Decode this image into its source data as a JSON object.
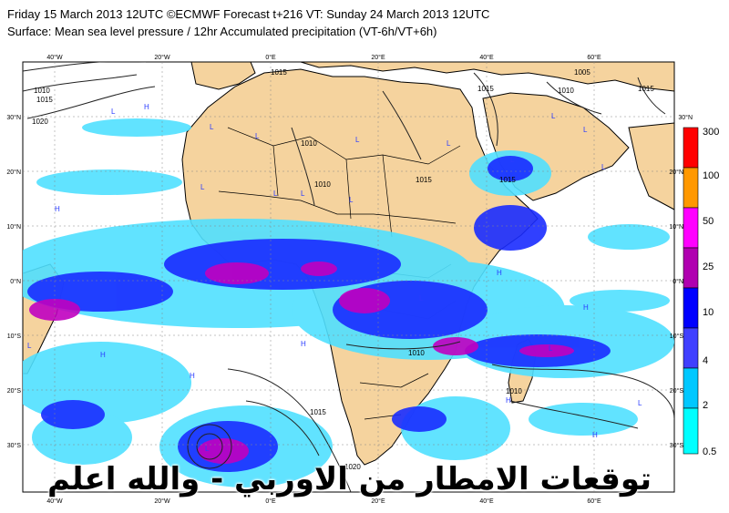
{
  "header": {
    "line1": "Friday 15 March 2013 12UTC ©ECMWF Forecast t+216 VT: Sunday 24 March 2013 12UTC",
    "line2": "Surface: Mean sea level pressure / 12hr Accumulated precipitation (VT-6h/VT+6h)"
  },
  "lon_labels": [
    "40°W",
    "20°W",
    "0°E",
    "20°E",
    "40°E",
    "60°E"
  ],
  "lat_labels": [
    "30°N",
    "20°N",
    "10°N",
    "0°N",
    "10°S",
    "20°S",
    "30°S"
  ],
  "isobar_labels": [
    "1015",
    "1010",
    "1015",
    "1020",
    "1010",
    "1010",
    "1015",
    "1015",
    "1015",
    "1010",
    "1010",
    "1015",
    "1020",
    "1005",
    "1010",
    "1015"
  ],
  "pressure_markers": {
    "high": "H",
    "low": "L"
  },
  "legend": {
    "levels": [
      "300",
      "100",
      "50",
      "25",
      "10",
      "4",
      "2",
      "0.5"
    ],
    "colors": [
      "#ff0000",
      "#ff9800",
      "#ff00ff",
      "#b000b0",
      "#0000ff",
      "#4040ff",
      "#00c8ff",
      "#00ffff"
    ]
  },
  "colors": {
    "land": "#f5d39e",
    "ocean": "#ffffff",
    "light_precip": "#50e0ff",
    "mid_precip": "#1a2cff",
    "heavy_precip": "#c000c0"
  },
  "overlay_text": "توقعات الامطار من الاوربي - والله اعلم"
}
